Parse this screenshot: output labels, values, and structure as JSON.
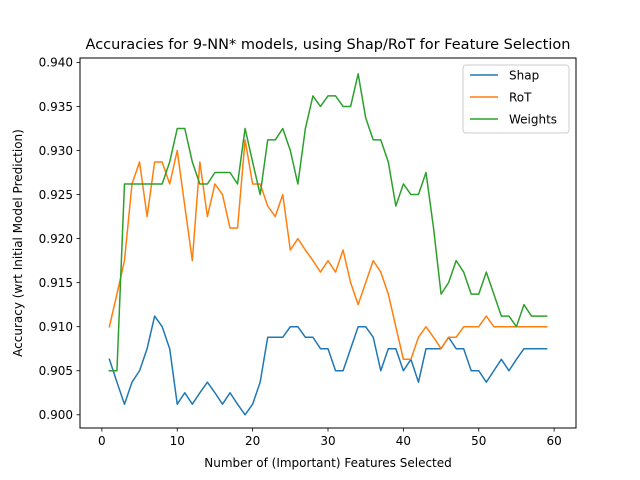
{
  "chart_data": {
    "type": "line",
    "title": "Accuracies for 9-NN* models, using Shap/RoT for Feature Selection",
    "xlabel": "Number of (Important) Features Selected",
    "ylabel": "Accuracy (wrt Initial Model Prediction)",
    "xlim": [
      -2.9,
      62.9
    ],
    "ylim": [
      0.8985,
      0.9405
    ],
    "xticks": [
      0,
      10,
      20,
      30,
      40,
      50,
      60
    ],
    "xtick_labels": [
      "0",
      "10",
      "20",
      "30",
      "40",
      "50",
      "60"
    ],
    "yticks": [
      0.9,
      0.905,
      0.91,
      0.915,
      0.92,
      0.925,
      0.93,
      0.935,
      0.94
    ],
    "ytick_labels": [
      "0.900",
      "0.905",
      "0.910",
      "0.915",
      "0.920",
      "0.925",
      "0.930",
      "0.935",
      "0.940"
    ],
    "grid": false,
    "legend_position": "top-right",
    "x": [
      1,
      2,
      3,
      4,
      5,
      6,
      7,
      8,
      9,
      10,
      11,
      12,
      13,
      14,
      15,
      16,
      17,
      18,
      19,
      20,
      21,
      22,
      23,
      24,
      25,
      26,
      27,
      28,
      29,
      30,
      31,
      32,
      33,
      34,
      35,
      36,
      37,
      38,
      39,
      40,
      41,
      42,
      43,
      44,
      45,
      46,
      47,
      48,
      49,
      50,
      51,
      52,
      53,
      54,
      55,
      56,
      57,
      58,
      59
    ],
    "series": [
      {
        "name": "Shap",
        "color": "#1f77b4",
        "values": [
          0.9063,
          0.9037,
          0.9012,
          0.9037,
          0.905,
          0.9075,
          0.9112,
          0.91,
          0.9075,
          0.9012,
          0.9025,
          0.9012,
          0.9025,
          0.9037,
          0.9025,
          0.9012,
          0.9025,
          0.9012,
          0.9,
          0.9012,
          0.9037,
          0.9088,
          0.9088,
          0.9088,
          0.91,
          0.91,
          0.9088,
          0.9088,
          0.9075,
          0.9075,
          0.905,
          0.905,
          0.9075,
          0.91,
          0.91,
          0.9088,
          0.905,
          0.9075,
          0.9075,
          0.905,
          0.9063,
          0.9037,
          0.9075,
          0.9075,
          0.9075,
          0.9088,
          0.9075,
          0.9075,
          0.905,
          0.905,
          0.9037,
          0.905,
          0.9063,
          0.905,
          0.9063,
          0.9075,
          0.9075,
          0.9075,
          0.9075
        ]
      },
      {
        "name": "RoT",
        "color": "#ff7f0e",
        "values": [
          0.91,
          0.9137,
          0.9175,
          0.9262,
          0.9287,
          0.9225,
          0.9287,
          0.9287,
          0.9262,
          0.93,
          0.9237,
          0.9175,
          0.9287,
          0.9225,
          0.9262,
          0.925,
          0.9212,
          0.9212,
          0.9312,
          0.9262,
          0.9262,
          0.9237,
          0.9225,
          0.925,
          0.9187,
          0.92,
          0.9187,
          0.9175,
          0.9162,
          0.9175,
          0.9162,
          0.9187,
          0.915,
          0.9125,
          0.915,
          0.9175,
          0.9162,
          0.9137,
          0.91,
          0.9063,
          0.9063,
          0.9088,
          0.91,
          0.9088,
          0.9075,
          0.9088,
          0.9088,
          0.91,
          0.91,
          0.91,
          0.9112,
          0.91,
          0.91,
          0.91,
          0.91,
          0.91,
          0.91,
          0.91,
          0.91
        ]
      },
      {
        "name": "Weights",
        "color": "#2ca02c",
        "values": [
          0.905,
          0.905,
          0.9262,
          0.9262,
          0.9262,
          0.9262,
          0.9262,
          0.9262,
          0.9287,
          0.9325,
          0.9325,
          0.9287,
          0.9262,
          0.9262,
          0.9275,
          0.9275,
          0.9275,
          0.9262,
          0.9325,
          0.9287,
          0.925,
          0.9312,
          0.9312,
          0.9325,
          0.93,
          0.9262,
          0.9325,
          0.9362,
          0.935,
          0.9362,
          0.9362,
          0.935,
          0.935,
          0.9387,
          0.9337,
          0.9312,
          0.9312,
          0.9287,
          0.9237,
          0.9262,
          0.925,
          0.925,
          0.9275,
          0.9212,
          0.9137,
          0.915,
          0.9175,
          0.9162,
          0.9137,
          0.9137,
          0.9162,
          0.9137,
          0.9112,
          0.9112,
          0.91,
          0.9125,
          0.9112,
          0.9112,
          0.9112
        ]
      }
    ]
  }
}
